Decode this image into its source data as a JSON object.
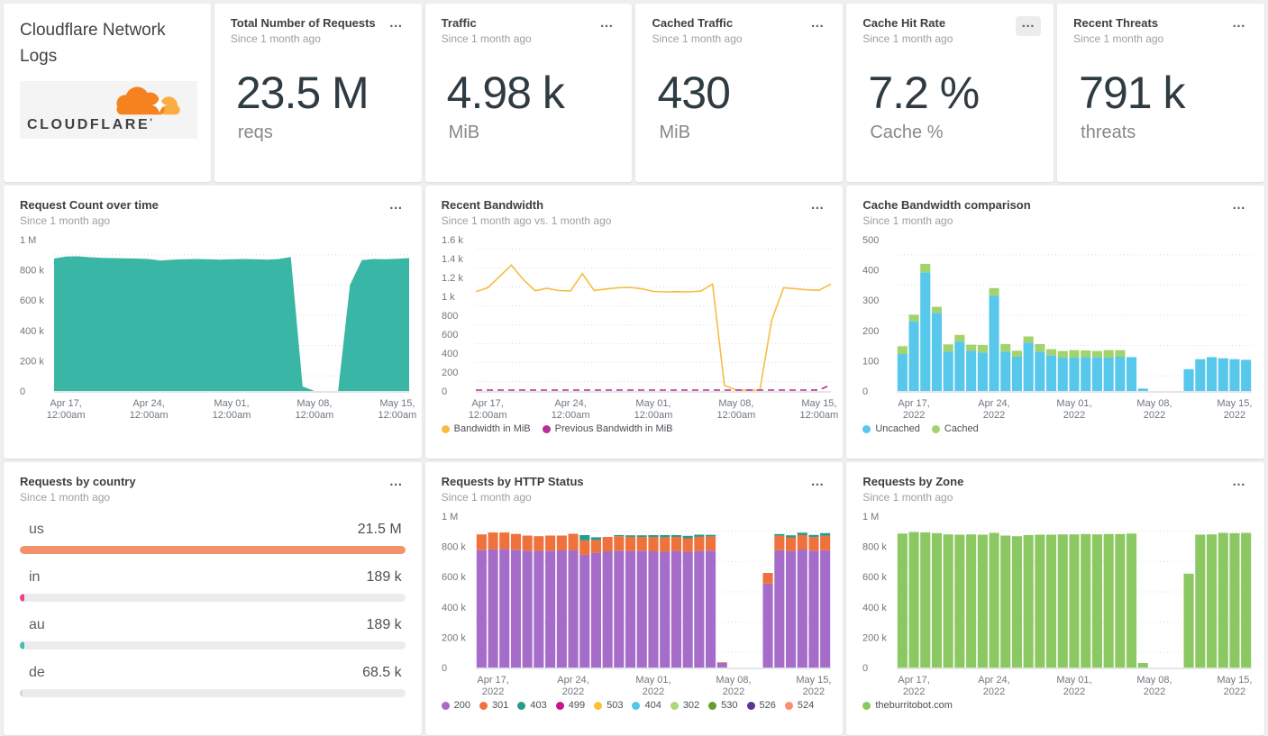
{
  "ui": {
    "menu_icon": "…"
  },
  "brand": {
    "title": "Cloudflare Network Logs",
    "logo_text": "CLOUDFLARE",
    "colors": {
      "orange": "#f6821f",
      "light_orange": "#fbad41",
      "text": "#404041"
    }
  },
  "metrics": [
    {
      "title": "Total Number of Requests",
      "subtitle": "Since 1 month ago",
      "value": "23.5 M",
      "unit": "reqs"
    },
    {
      "title": "Traffic",
      "subtitle": "Since 1 month ago",
      "value": "4.98 k",
      "unit": "MiB"
    },
    {
      "title": "Cached Traffic",
      "subtitle": "Since 1 month ago",
      "value": "430",
      "unit": "MiB"
    },
    {
      "title": "Cache Hit Rate",
      "subtitle": "Since 1 month ago",
      "value": "7.2 %",
      "unit": "Cache %"
    },
    {
      "title": "Recent Threats",
      "subtitle": "Since 1 month ago",
      "value": "791 k",
      "unit": "threats"
    }
  ],
  "chart_data": [
    {
      "type": "area",
      "title": "Request Count over time",
      "subtitle": "Since 1 month ago",
      "color": "#39b6a5",
      "ylabels": [
        "1 M",
        "800 k",
        "600 k",
        "400 k",
        "200 k",
        "0"
      ],
      "ymax": 1000,
      "yunit": "requests (thousands)",
      "x_ticks": [
        {
          "idx": 1,
          "line1": "Apr 17,",
          "line2": "12:00am"
        },
        {
          "idx": 8,
          "line1": "Apr 24,",
          "line2": "12:00am"
        },
        {
          "idx": 15,
          "line1": "May 01,",
          "line2": "12:00am"
        },
        {
          "idx": 22,
          "line1": "May 08,",
          "line2": "12:00am"
        },
        {
          "idx": 29,
          "line1": "May 15,",
          "line2": "12:00am"
        }
      ],
      "values": [
        875,
        888,
        890,
        884,
        880,
        878,
        876,
        875,
        872,
        862,
        868,
        870,
        872,
        870,
        868,
        870,
        872,
        870,
        868,
        872,
        885,
        30,
        0,
        0,
        0,
        700,
        865,
        872,
        870,
        874,
        878
      ]
    },
    {
      "type": "line",
      "title": "Recent Bandwidth",
      "subtitle": "Since 1 month ago vs. 1 month ago",
      "ylabels": [
        "1.6 k",
        "1.4 k",
        "1.2 k",
        "1 k",
        "800",
        "600",
        "400",
        "200",
        "0"
      ],
      "ymax": 1600,
      "yunit": "MiB",
      "x_ticks": [
        {
          "idx": 1,
          "line1": "Apr 17,",
          "line2": "12:00am"
        },
        {
          "idx": 8,
          "line1": "Apr 24,",
          "line2": "12:00am"
        },
        {
          "idx": 15,
          "line1": "May 01,",
          "line2": "12:00am"
        },
        {
          "idx": 22,
          "line1": "May 08,",
          "line2": "12:00am"
        },
        {
          "idx": 29,
          "line1": "May 15,",
          "line2": "12:00am"
        }
      ],
      "series": [
        {
          "name": "Bandwidth in MiB",
          "color": "#f7bd41",
          "dash": false,
          "values": [
            1050,
            1090,
            1210,
            1330,
            1180,
            1060,
            1085,
            1062,
            1058,
            1240,
            1062,
            1078,
            1090,
            1095,
            1080,
            1052,
            1048,
            1050,
            1048,
            1055,
            1130,
            60,
            0,
            0,
            0,
            750,
            1090,
            1080,
            1070,
            1065,
            1130
          ]
        },
        {
          "name": "Previous Bandwidth in MiB",
          "color": "#b52f94",
          "dash": true,
          "values": [
            0,
            0,
            0,
            0,
            0,
            0,
            0,
            0,
            0,
            0,
            0,
            0,
            0,
            0,
            0,
            0,
            0,
            0,
            0,
            0,
            0,
            0,
            0,
            0,
            0,
            0,
            0,
            0,
            0,
            10,
            65
          ]
        }
      ]
    },
    {
      "type": "stacked_bar",
      "title": "Cache Bandwidth comparison",
      "subtitle": "Since 1 month ago",
      "ylabels": [
        "500",
        "400",
        "300",
        "200",
        "100",
        "0"
      ],
      "ymax": 500,
      "yunit": "MiB",
      "x_ticks": [
        {
          "idx": 1,
          "line1": "Apr 17,",
          "line2": "2022"
        },
        {
          "idx": 8,
          "line1": "Apr 24,",
          "line2": "2022"
        },
        {
          "idx": 15,
          "line1": "May 01,",
          "line2": "2022"
        },
        {
          "idx": 22,
          "line1": "May 08,",
          "line2": "2022"
        },
        {
          "idx": 29,
          "line1": "May 15,",
          "line2": "2022"
        }
      ],
      "series": [
        {
          "name": "Uncached",
          "color": "#57c7ec",
          "values": [
            122,
            230,
            392,
            258,
            130,
            163,
            133,
            127,
            315,
            130,
            113,
            160,
            130,
            118,
            110,
            110,
            112,
            112,
            110,
            113,
            112,
            8,
            0,
            0,
            0,
            72,
            105,
            112,
            108,
            105,
            103
          ]
        },
        {
          "name": "Cached",
          "color": "#a2d36d",
          "values": [
            26,
            22,
            28,
            20,
            24,
            22,
            20,
            25,
            25,
            25,
            20,
            20,
            25,
            20,
            22,
            25,
            22,
            20,
            25,
            22,
            0,
            0,
            0,
            0,
            0,
            0,
            0,
            0,
            0,
            0,
            0
          ]
        }
      ]
    },
    {
      "type": "hbar",
      "title": "Requests by country",
      "subtitle": "Since 1 month ago",
      "track_color": "#ececec",
      "rows": [
        {
          "label": "us",
          "value": "21.5 M",
          "pct": 100,
          "color": "#f4916d"
        },
        {
          "label": "in",
          "value": "189 k",
          "pct": 1.1,
          "color": "#e8418d"
        },
        {
          "label": "au",
          "value": "189 k",
          "pct": 1.1,
          "color": "#40bfae"
        },
        {
          "label": "de",
          "value": "68.5 k",
          "pct": 0.5,
          "color": "#c4dce8"
        }
      ]
    },
    {
      "type": "stacked_bar",
      "title": "Requests by HTTP Status",
      "subtitle": "Since 1 month ago",
      "ylabels": [
        "1 M",
        "800 k",
        "600 k",
        "400 k",
        "200 k",
        "0"
      ],
      "ymax": 1000,
      "yunit": "requests (thousands)",
      "x_ticks": [
        {
          "idx": 1,
          "line1": "Apr 17,",
          "line2": "2022"
        },
        {
          "idx": 8,
          "line1": "Apr 24,",
          "line2": "2022"
        },
        {
          "idx": 15,
          "line1": "May 01,",
          "line2": "2022"
        },
        {
          "idx": 22,
          "line1": "May 08,",
          "line2": "2022"
        },
        {
          "idx": 29,
          "line1": "May 15,",
          "line2": "2022"
        }
      ],
      "series": [
        {
          "name": "200",
          "color": "#a56cc9",
          "values": [
            775,
            780,
            782,
            778,
            772,
            770,
            772,
            774,
            776,
            745,
            758,
            768,
            772,
            770,
            772,
            768,
            766,
            770,
            764,
            770,
            772,
            30,
            0,
            0,
            0,
            555,
            775,
            770,
            780,
            772,
            775
          ]
        },
        {
          "name": "301",
          "color": "#ef713c",
          "values": [
            105,
            112,
            110,
            105,
            100,
            98,
            100,
            98,
            108,
            95,
            85,
            95,
            95,
            94,
            90,
            95,
            95,
            93,
            90,
            94,
            95,
            5,
            0,
            0,
            0,
            70,
            95,
            90,
            95,
            90,
            95
          ]
        },
        {
          "name": "403",
          "color": "#279c8d",
          "values": [
            0,
            0,
            0,
            0,
            0,
            0,
            0,
            0,
            0,
            35,
            18,
            0,
            8,
            10,
            12,
            12,
            14,
            12,
            16,
            14,
            10,
            0,
            0,
            0,
            0,
            0,
            12,
            14,
            16,
            14,
            18
          ]
        },
        {
          "name": "499",
          "color": "#c2188c",
          "values": []
        },
        {
          "name": "503",
          "color": "#fdc02f",
          "values": []
        },
        {
          "name": "404",
          "color": "#53c5e8",
          "values": []
        },
        {
          "name": "302",
          "color": "#a9d878",
          "values": []
        },
        {
          "name": "530",
          "color": "#689e30",
          "values": []
        },
        {
          "name": "526",
          "color": "#5f3591",
          "values": []
        },
        {
          "name": "524",
          "color": "#f8906e",
          "values": []
        }
      ]
    },
    {
      "type": "stacked_bar",
      "title": "Requests by Zone",
      "subtitle": "Since 1 month ago",
      "ylabels": [
        "1 M",
        "800 k",
        "600 k",
        "400 k",
        "200 k",
        "0"
      ],
      "ymax": 1000,
      "yunit": "requests (thousands)",
      "x_ticks": [
        {
          "idx": 1,
          "line1": "Apr 17,",
          "line2": "2022"
        },
        {
          "idx": 8,
          "line1": "Apr 24,",
          "line2": "2022"
        },
        {
          "idx": 15,
          "line1": "May 01,",
          "line2": "2022"
        },
        {
          "idx": 22,
          "line1": "May 08,",
          "line2": "2022"
        },
        {
          "idx": 29,
          "line1": "May 15,",
          "line2": "2022"
        }
      ],
      "series": [
        {
          "name": "theburritobot.com",
          "color": "#8bc862",
          "values": [
            885,
            895,
            893,
            888,
            880,
            878,
            880,
            878,
            890,
            872,
            868,
            875,
            878,
            878,
            880,
            880,
            882,
            880,
            882,
            882,
            885,
            30,
            0,
            0,
            0,
            620,
            878,
            880,
            890,
            888,
            890
          ]
        }
      ]
    }
  ]
}
